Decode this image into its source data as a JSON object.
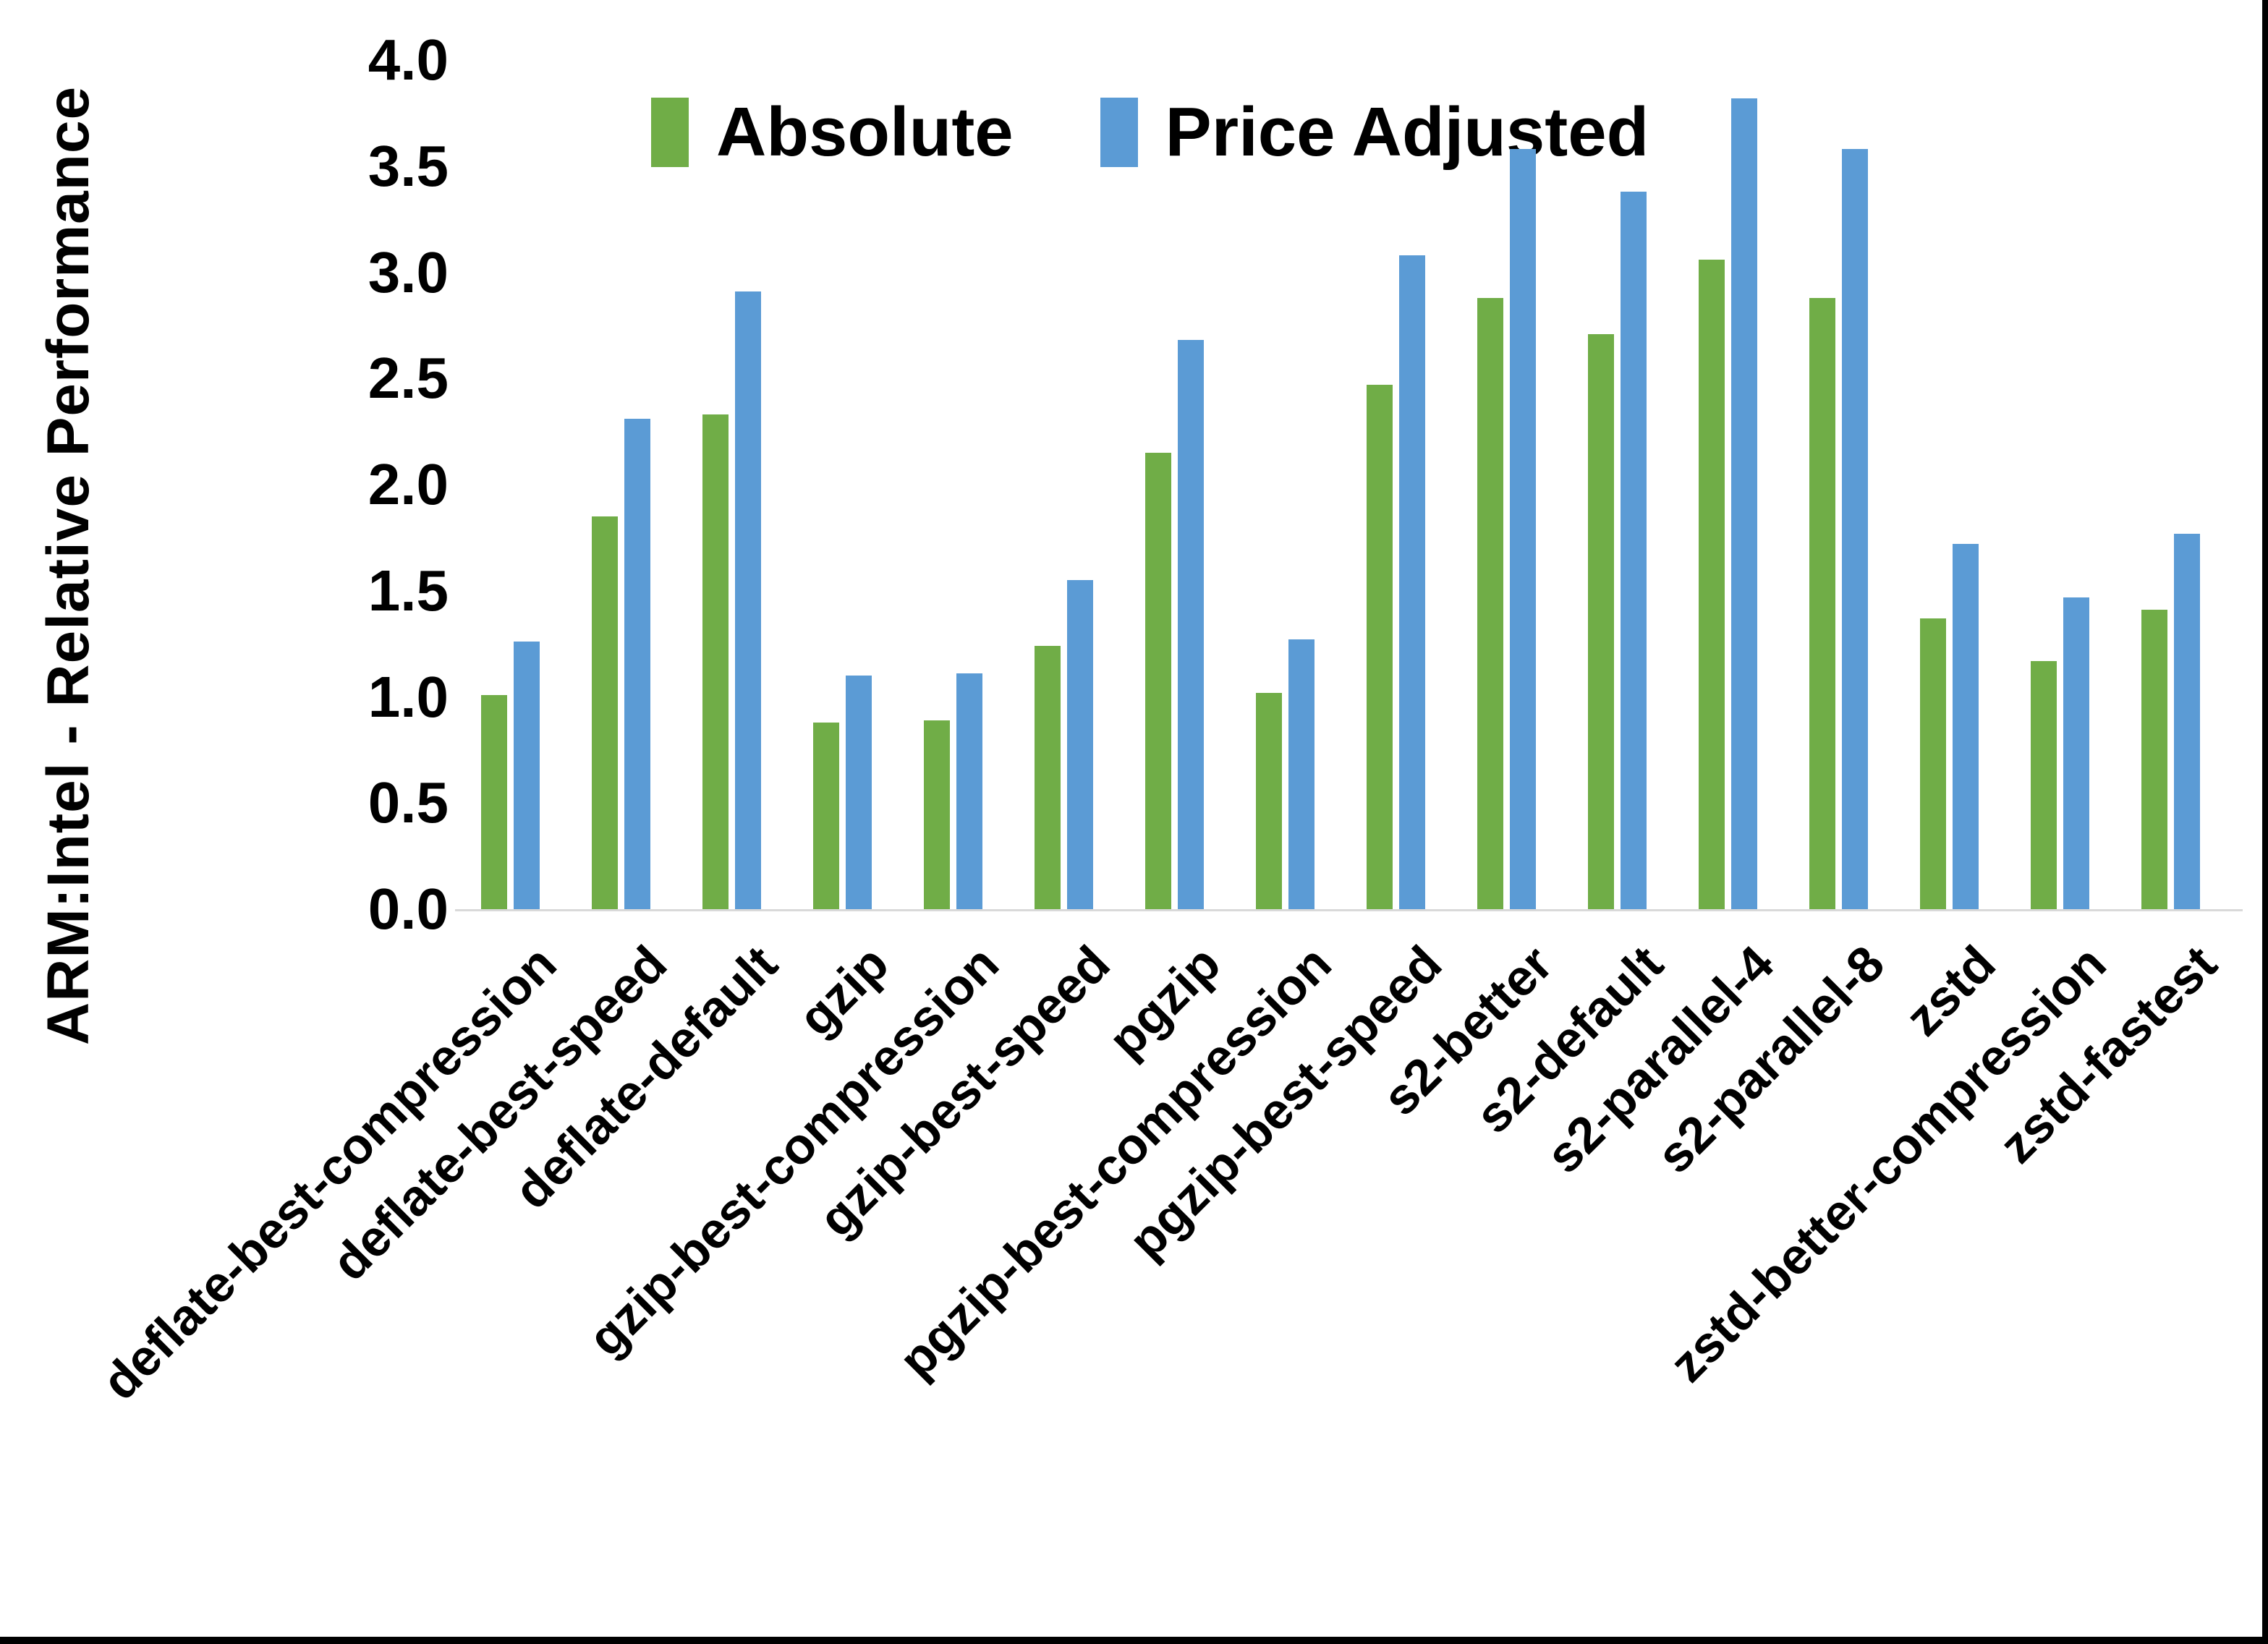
{
  "chart_data": {
    "type": "bar",
    "title": "",
    "ylabel": "ARM:Intel - Relative Performance",
    "xlabel": "",
    "categories": [
      "deflate-best-compression",
      "deflate-best-speed",
      "deflate-default",
      "gzip",
      "gzip-best-compression",
      "gzip-best-speed",
      "pgzip",
      "pgzip-best-compression",
      "pgzip-best-speed",
      "s2-better",
      "s2-default",
      "s2-parallel-4",
      "s2-parallel-8",
      "zstd",
      "zstd-better-compression",
      "zstd-fastest"
    ],
    "series": [
      {
        "name": "Absolute",
        "color": "#70AD47",
        "values": [
          1.01,
          1.85,
          2.33,
          0.88,
          0.89,
          1.24,
          2.15,
          1.02,
          2.47,
          2.88,
          2.71,
          3.06,
          2.88,
          1.37,
          1.17,
          1.41
        ]
      },
      {
        "name": "Price Adjusted",
        "color": "#5B9BD5",
        "values": [
          1.26,
          2.31,
          2.91,
          1.1,
          1.11,
          1.55,
          2.68,
          1.27,
          3.08,
          3.58,
          3.38,
          3.82,
          3.58,
          1.72,
          1.47,
          1.77
        ]
      }
    ],
    "ylim": [
      0.0,
      4.0
    ],
    "ytick_labels": [
      "0.0",
      "0.5",
      "1.0",
      "1.5",
      "2.0",
      "2.5",
      "3.0",
      "3.5",
      "4.0"
    ],
    "grid": false,
    "legend_position": "top-center",
    "axis_line_color": "#D9D9D9",
    "background": "#FFFFFF",
    "frame_border_color": "#000000"
  }
}
